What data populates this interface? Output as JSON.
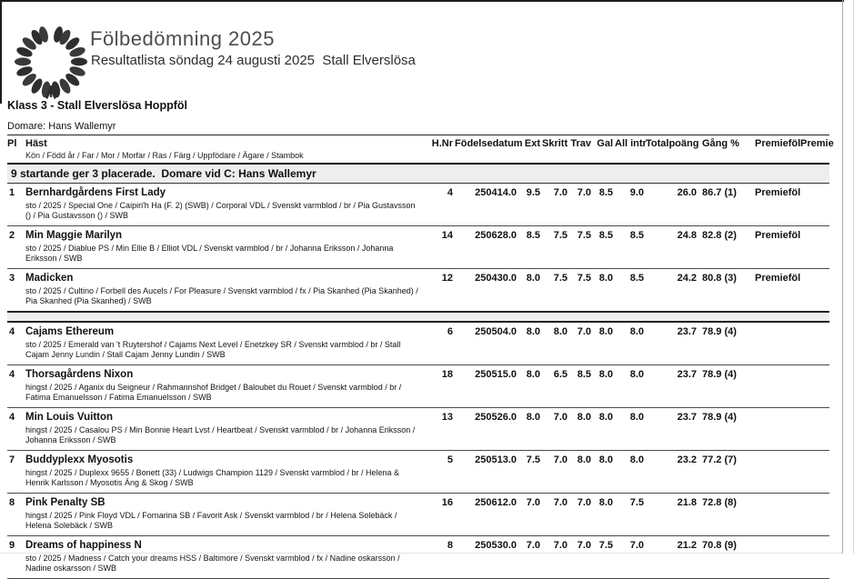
{
  "page": {
    "title": "Fölbedömning 2025",
    "subtitle": "Resultatlista söndag 24 augusti 2025  Stall Elverslösa",
    "class_heading": "Klass 3 - Stall Elverslösa Hoppföl",
    "judge_line": "Domare: Hans Wallemyr",
    "logo_icon": "laurel-wreath-icon"
  },
  "colors": {
    "band_bg": "#eeeeee",
    "line_dark": "#1a1a1a"
  },
  "table": {
    "headers": {
      "pl": "Pl",
      "hast": "Häst",
      "hast_sub": "Kön / Född år / Far / Mor / Morfar / Ras / Färg / Uppfödare / Ägare / Stambok",
      "hnr": "H.Nr",
      "fodelsedatum": "Födelsedatum",
      "ext": "Ext",
      "skritt": "Skritt",
      "trav": "Trav",
      "gal": "Gal",
      "allintr": "All intr",
      "totalpoang": "Totalpoäng",
      "gang": "Gång %",
      "premiefol": "Premieföl",
      "premie": "Premie"
    },
    "summary": "9 startande ger 3 placerade.  Domare vid C: Hans Wallemyr",
    "rows": [
      {
        "pl": "1",
        "name": "Bernhardgårdens First Lady",
        "details": "sto / 2025 / Special One / Caipiri'h Ha (F. 2) (SWB) / Corporal VDL / Svenskt varmblod / br / Pia Gustavsson () / Pia Gustavsson () / SWB",
        "hnr": "4",
        "fodelsedatum": "250414.0",
        "ext": "9.5",
        "skritt": "7.0",
        "trav": "7.0",
        "gal": "8.5",
        "allintr": "9.0",
        "totalpoang": "26.0",
        "gang": "86.7 (1)",
        "premiefol": "Premieföl",
        "premie": "",
        "group_end": false
      },
      {
        "pl": "2",
        "name": "Min Maggie Marilyn",
        "details": "sto / 2025 / Diablue PS / Min Ellie B / Elliot VDL / Svenskt varmblod / br / Johanna Eriksson / Johanna Eriksson / SWB",
        "hnr": "14",
        "fodelsedatum": "250628.0",
        "ext": "8.5",
        "skritt": "7.5",
        "trav": "7.5",
        "gal": "8.5",
        "allintr": "8.5",
        "totalpoang": "24.8",
        "gang": "82.8 (2)",
        "premiefol": "Premieföl",
        "premie": "",
        "group_end": false
      },
      {
        "pl": "3",
        "name": "Madicken",
        "details": "sto / 2025 / Cultino / Forbell des Aucels / For Pleasure / Svenskt varmblod / fx / Pia Skanhed (Pia Skanhed) / Pia Skanhed (Pia Skanhed) / SWB",
        "hnr": "12",
        "fodelsedatum": "250430.0",
        "ext": "8.0",
        "skritt": "7.5",
        "trav": "7.5",
        "gal": "8.0",
        "allintr": "8.5",
        "totalpoang": "24.2",
        "gang": "80.8 (3)",
        "premiefol": "Premieföl",
        "premie": "",
        "group_end": true
      },
      {
        "pl": "4",
        "name": "Cajams Ethereum",
        "details": "sto / 2025 / Emerald van 't Ruytershof / Cajams Next Level / Enetzkey SR / Svenskt varmblod / br / Stall Cajam Jenny Lundin / Stall Cajam Jenny Lundin / SWB",
        "hnr": "6",
        "fodelsedatum": "250504.0",
        "ext": "8.0",
        "skritt": "8.0",
        "trav": "7.0",
        "gal": "8.0",
        "allintr": "8.0",
        "totalpoang": "23.7",
        "gang": "78.9 (4)",
        "premiefol": "",
        "premie": "",
        "group_end": false
      },
      {
        "pl": "4",
        "name": "Thorsagårdens Nixon",
        "details": "hingst / 2025 / Aganix du Seigneur / Rahmannshof Bridget / Baloubet du Rouet / Svenskt varmblod / br / Fatima Emanuelsson / Fatima Emanuelsson / SWB",
        "hnr": "18",
        "fodelsedatum": "250515.0",
        "ext": "8.0",
        "skritt": "6.5",
        "trav": "8.5",
        "gal": "8.0",
        "allintr": "8.0",
        "totalpoang": "23.7",
        "gang": "78.9 (4)",
        "premiefol": "",
        "premie": "",
        "group_end": false
      },
      {
        "pl": "4",
        "name": "Min Louis Vuitton",
        "details": "hingst / 2025 / Casalou PS / Min Bonnie Heart Lvst / Heartbeat / Svenskt varmblod / br / Johanna Eriksson / Johanna Eriksson / SWB",
        "hnr": "13",
        "fodelsedatum": "250526.0",
        "ext": "8.0",
        "skritt": "7.0",
        "trav": "8.0",
        "gal": "8.0",
        "allintr": "8.0",
        "totalpoang": "23.7",
        "gang": "78.9 (4)",
        "premiefol": "",
        "premie": "",
        "group_end": false
      },
      {
        "pl": "7",
        "name": "Buddyplexx Myosotis",
        "details": "hingst / 2025 / Duplexx 9655 / Bonett (33) / Ludwigs Champion 1129 / Svenskt varmblod / br / Helena & Henrik Karlsson / Myosotis Äng & Skog / SWB",
        "hnr": "5",
        "fodelsedatum": "250513.0",
        "ext": "7.5",
        "skritt": "7.0",
        "trav": "8.0",
        "gal": "8.0",
        "allintr": "8.0",
        "totalpoang": "23.2",
        "gang": "77.2 (7)",
        "premiefol": "",
        "premie": "",
        "group_end": false
      },
      {
        "pl": "8",
        "name": "Pink Penalty SB",
        "details": "hingst / 2025 / Pink Floyd VDL / Fornarina SB / Favorit Ask / Svenskt varmblod / br / Helena Solebäck / Helena Solebäck / SWB",
        "hnr": "16",
        "fodelsedatum": "250612.0",
        "ext": "7.0",
        "skritt": "7.0",
        "trav": "7.0",
        "gal": "8.0",
        "allintr": "7.5",
        "totalpoang": "21.8",
        "gang": "72.8 (8)",
        "premiefol": "",
        "premie": "",
        "group_end": false
      },
      {
        "pl": "9",
        "name": "Dreams of happiness N",
        "details": "sto / 2025 / Madness / Catch your dreams HSS / Baltimore / Svenskt varmblod / fx / Nadine oskarsson / Nadine oskarsson / SWB",
        "hnr": "8",
        "fodelsedatum": "250530.0",
        "ext": "7.0",
        "skritt": "7.0",
        "trav": "7.0",
        "gal": "7.5",
        "allintr": "7.0",
        "totalpoang": "21.2",
        "gang": "70.8 (9)",
        "premiefol": "",
        "premie": "",
        "group_end": false
      }
    ]
  }
}
